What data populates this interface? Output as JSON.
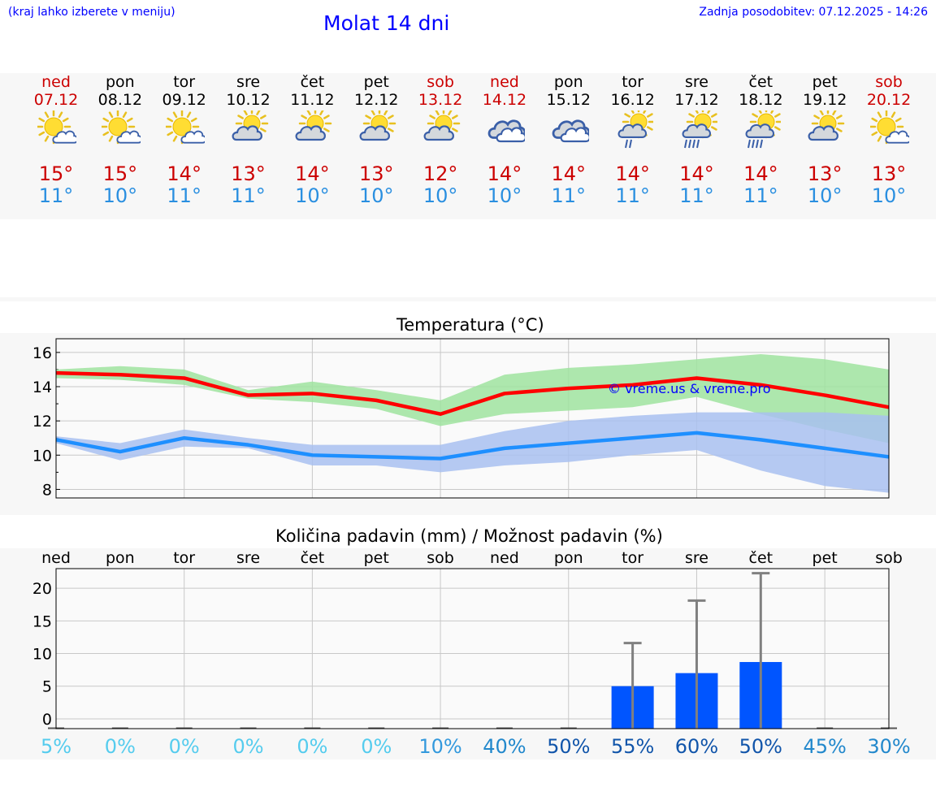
{
  "header": {
    "hint": "(kraj lahko izberete v meniju)",
    "title": "Molat 14 dni",
    "updated": "Zadnja posodobitev: 07.12.2025 - 14:26"
  },
  "colors": {
    "weekend": "#cc0000",
    "weekday": "#000000",
    "max_temp": "#cc0000",
    "min_temp": "#2a8fe0",
    "max_line": "#ff0000",
    "min_line": "#1e8fff",
    "max_band": "#9fe39f",
    "min_band": "#a8c0f0",
    "precip_bar": "#0055ff",
    "error_bar": "#808080"
  },
  "days": [
    {
      "name": "ned",
      "date": "07.12",
      "weekend": true,
      "icon": "sun-cloud-icon",
      "max": "15°",
      "min": "11°"
    },
    {
      "name": "pon",
      "date": "08.12",
      "weekend": false,
      "icon": "sun-cloud-icon",
      "max": "15°",
      "min": "10°"
    },
    {
      "name": "tor",
      "date": "09.12",
      "weekend": false,
      "icon": "sun-cloud-icon",
      "max": "14°",
      "min": "11°"
    },
    {
      "name": "sre",
      "date": "10.12",
      "weekend": false,
      "icon": "cloud-sun-icon",
      "max": "13°",
      "min": "11°"
    },
    {
      "name": "čet",
      "date": "11.12",
      "weekend": false,
      "icon": "cloud-sun-icon",
      "max": "14°",
      "min": "10°"
    },
    {
      "name": "pet",
      "date": "12.12",
      "weekend": false,
      "icon": "cloud-sun-icon",
      "max": "13°",
      "min": "10°"
    },
    {
      "name": "sob",
      "date": "13.12",
      "weekend": true,
      "icon": "cloud-sun-icon",
      "max": "12°",
      "min": "10°"
    },
    {
      "name": "ned",
      "date": "14.12",
      "weekend": true,
      "icon": "cloudy-icon",
      "max": "14°",
      "min": "10°"
    },
    {
      "name": "pon",
      "date": "15.12",
      "weekend": false,
      "icon": "cloudy-icon",
      "max": "14°",
      "min": "11°"
    },
    {
      "name": "tor",
      "date": "16.12",
      "weekend": false,
      "icon": "cloud-sun-light-rain-icon",
      "max": "14°",
      "min": "11°"
    },
    {
      "name": "sre",
      "date": "17.12",
      "weekend": false,
      "icon": "cloud-sun-rain-icon",
      "max": "14°",
      "min": "11°"
    },
    {
      "name": "čet",
      "date": "18.12",
      "weekend": false,
      "icon": "cloud-sun-rain-icon",
      "max": "14°",
      "min": "11°"
    },
    {
      "name": "pet",
      "date": "19.12",
      "weekend": false,
      "icon": "cloud-sun-icon",
      "max": "13°",
      "min": "10°"
    },
    {
      "name": "sob",
      "date": "20.12",
      "weekend": true,
      "icon": "sun-cloud-icon",
      "max": "13°",
      "min": "10°"
    }
  ],
  "chart_data": [
    {
      "type": "line",
      "title": "Temperatura (°C)",
      "xlabel": "",
      "ylabel": "",
      "x": [
        0,
        1,
        2,
        3,
        4,
        5,
        6,
        7,
        8,
        9,
        10,
        11,
        12,
        13
      ],
      "ylim": [
        7.5,
        16.8
      ],
      "yticks": [
        8,
        10,
        12,
        14,
        16
      ],
      "grid": true,
      "series": [
        {
          "name": "max",
          "values": [
            14.8,
            14.7,
            14.5,
            13.5,
            13.6,
            13.2,
            12.4,
            13.6,
            13.9,
            14.1,
            14.5,
            14.1,
            13.5,
            12.8
          ],
          "band_low": [
            14.5,
            14.4,
            14.1,
            13.3,
            13.1,
            12.7,
            11.7,
            12.4,
            12.6,
            12.8,
            13.4,
            12.4,
            11.5,
            10.7
          ],
          "band_high": [
            15.0,
            15.2,
            15.0,
            13.8,
            14.3,
            13.8,
            13.2,
            14.7,
            15.1,
            15.3,
            15.6,
            15.9,
            15.6,
            15.0
          ]
        },
        {
          "name": "min",
          "values": [
            10.9,
            10.2,
            11.0,
            10.6,
            10.0,
            9.9,
            9.8,
            10.4,
            10.7,
            11.0,
            11.3,
            10.9,
            10.4,
            9.9
          ],
          "band_low": [
            10.7,
            9.7,
            10.5,
            10.4,
            9.4,
            9.4,
            9.0,
            9.4,
            9.6,
            10.0,
            10.3,
            9.1,
            8.2,
            7.8
          ],
          "band_high": [
            11.1,
            10.7,
            11.5,
            11.0,
            10.6,
            10.6,
            10.6,
            11.4,
            12.0,
            12.3,
            12.5,
            12.5,
            12.5,
            12.3
          ]
        }
      ],
      "annotation": "© vreme.us & vreme.pro"
    },
    {
      "type": "bar",
      "title": "Količina padavin (mm) / Možnost padavin (%)",
      "categories": [
        "ned",
        "pon",
        "tor",
        "sre",
        "čet",
        "pet",
        "sob",
        "ned",
        "pon",
        "tor",
        "sre",
        "čet",
        "pet",
        "sob"
      ],
      "ylim": [
        -1.5,
        23
      ],
      "yticks": [
        0,
        5,
        10,
        15,
        20
      ],
      "values": [
        0,
        0,
        0,
        0,
        0,
        0,
        0,
        0,
        0,
        5.0,
        7.0,
        8.7,
        0,
        0
      ],
      "error_high": [
        0,
        0,
        0,
        0,
        0,
        0,
        0,
        0,
        0,
        11.6,
        18.1,
        22.3,
        0,
        0
      ],
      "chance": [
        "5%",
        "0%",
        "0%",
        "0%",
        "0%",
        "0%",
        "10%",
        "40%",
        "50%",
        "55%",
        "60%",
        "50%",
        "45%",
        "30%"
      ],
      "chance_colors": [
        "#55ccee",
        "#55ccee",
        "#55ccee",
        "#55ccee",
        "#55ccee",
        "#55ccee",
        "#3399dd",
        "#2288cc",
        "#1155aa",
        "#1155aa",
        "#1155aa",
        "#1155aa",
        "#2288cc",
        "#2288cc"
      ]
    }
  ]
}
